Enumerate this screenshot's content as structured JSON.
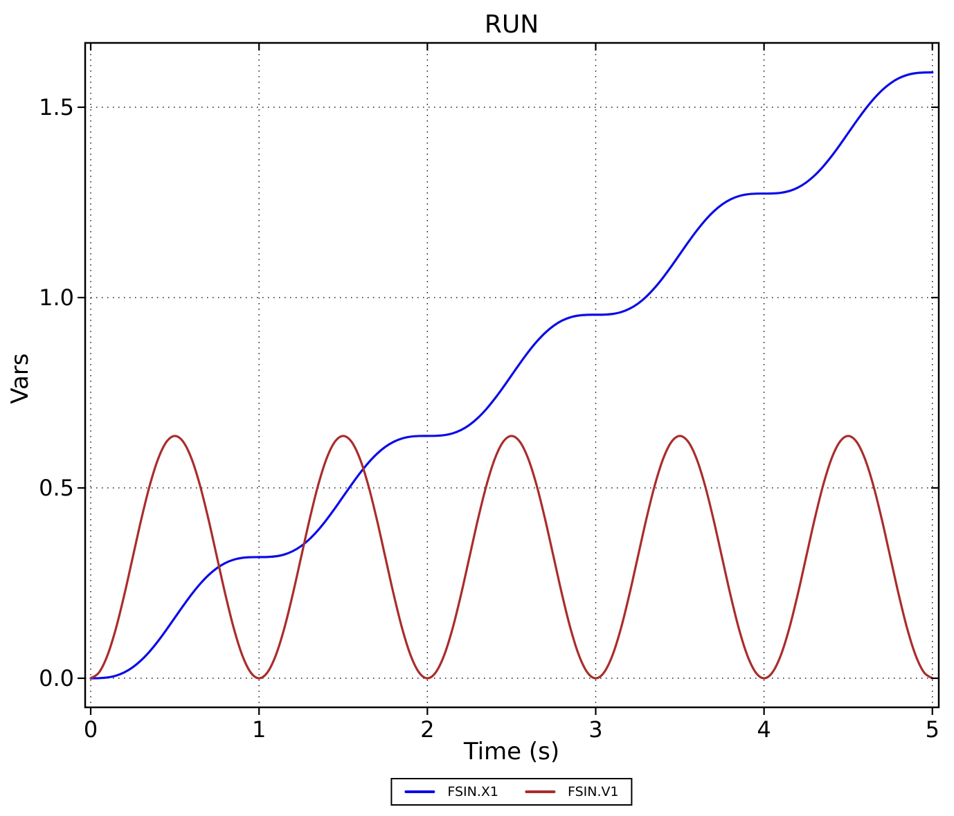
{
  "window": {
    "background": "#ffffff"
  },
  "chart_data": {
    "type": "line",
    "title": "RUN",
    "xlabel": "Time (s)",
    "ylabel": "Vars",
    "xlim": [
      -0.033,
      5.038
    ],
    "ylim": [
      -0.0764,
      1.669
    ],
    "grid": "dotted-black",
    "legend_position": "bottom-center",
    "frame_color": "#000000",
    "xticks": {
      "values": [
        0,
        1,
        2,
        3,
        4,
        5
      ],
      "labels": [
        "0",
        "1",
        "2",
        "3",
        "4",
        "5"
      ]
    },
    "yticks": {
      "values": [
        0.0,
        0.5,
        1.0,
        1.5
      ],
      "labels": [
        "0.0",
        "0.5",
        "1.0",
        "1.5"
      ]
    },
    "x": [
      0.0,
      0.05,
      0.1,
      0.15,
      0.2,
      0.25,
      0.3,
      0.35,
      0.4,
      0.45,
      0.5,
      0.55,
      0.6,
      0.65,
      0.7,
      0.75,
      0.8,
      0.85,
      0.9,
      0.95,
      1.0,
      1.05,
      1.1,
      1.15,
      1.2,
      1.25,
      1.3,
      1.35,
      1.4,
      1.45,
      1.5,
      1.55,
      1.6,
      1.65,
      1.7,
      1.75,
      1.8,
      1.85,
      1.9,
      1.95,
      2.0,
      2.05,
      2.1,
      2.15,
      2.2,
      2.25,
      2.3,
      2.35,
      2.4,
      2.45,
      2.5,
      2.55,
      2.6,
      2.65,
      2.7,
      2.75,
      2.8,
      2.85,
      2.9,
      2.95,
      3.0,
      3.05,
      3.1,
      3.15,
      3.2,
      3.25,
      3.3,
      3.35,
      3.4,
      3.45,
      3.5,
      3.55,
      3.6,
      3.65,
      3.7,
      3.75,
      3.8,
      3.85,
      3.9,
      3.95,
      4.0,
      4.05,
      4.1,
      4.15,
      4.2,
      4.25,
      4.3,
      4.35,
      4.4,
      4.45,
      4.5,
      4.55,
      4.6,
      4.65,
      4.7,
      4.75,
      4.8,
      4.85,
      4.9,
      4.95,
      5.0
    ],
    "series": [
      {
        "name": "FSIN.X1",
        "color": "#0c0ce8",
        "values": [
          0.0,
          0.0003,
          0.0021,
          0.0068,
          0.0155,
          0.0289,
          0.0473,
          0.0704,
          0.0975,
          0.1276,
          0.1592,
          0.1907,
          0.2208,
          0.2479,
          0.271,
          0.2894,
          0.3028,
          0.3115,
          0.3163,
          0.318,
          0.3183,
          0.3186,
          0.3204,
          0.3251,
          0.3338,
          0.3472,
          0.3656,
          0.3887,
          0.4159,
          0.4459,
          0.4775,
          0.509,
          0.5391,
          0.5662,
          0.5893,
          0.6077,
          0.6211,
          0.6299,
          0.6346,
          0.6364,
          0.6366,
          0.6369,
          0.6387,
          0.6434,
          0.6521,
          0.6655,
          0.6839,
          0.707,
          0.7342,
          0.7642,
          0.7958,
          0.8273,
          0.8574,
          0.8845,
          0.9076,
          0.926,
          0.9395,
          0.9482,
          0.9529,
          0.9547,
          0.9549,
          0.9552,
          0.957,
          0.9617,
          0.9704,
          0.9838,
          1.0022,
          1.0254,
          1.0525,
          1.0825,
          1.1141,
          1.1457,
          1.1757,
          1.2028,
          1.2259,
          1.2443,
          1.2578,
          1.2665,
          1.2712,
          1.273,
          1.2732,
          1.2735,
          1.2753,
          1.28,
          1.2887,
          1.3022,
          1.3206,
          1.3437,
          1.3708,
          1.4008,
          1.4324,
          1.464,
          1.494,
          1.5211,
          1.5442,
          1.5626,
          1.5761,
          1.5848,
          1.5895,
          1.5913,
          1.5915
        ]
      },
      {
        "name": "FSIN.V1",
        "color": "#aa2c2c",
        "values": [
          0.0,
          0.0156,
          0.0608,
          0.1312,
          0.2199,
          0.3183,
          0.4167,
          0.5054,
          0.5758,
          0.621,
          0.6366,
          0.621,
          0.5758,
          0.5054,
          0.4167,
          0.3183,
          0.2199,
          0.1312,
          0.0608,
          0.0156,
          0.0,
          0.0156,
          0.0608,
          0.1312,
          0.2199,
          0.3183,
          0.4167,
          0.5054,
          0.5758,
          0.621,
          0.6366,
          0.621,
          0.5758,
          0.5054,
          0.4167,
          0.3183,
          0.2199,
          0.1312,
          0.0608,
          0.0156,
          0.0,
          0.0156,
          0.0608,
          0.1312,
          0.2199,
          0.3183,
          0.4167,
          0.5054,
          0.5758,
          0.621,
          0.6366,
          0.621,
          0.5758,
          0.5054,
          0.4167,
          0.3183,
          0.2199,
          0.1312,
          0.0608,
          0.0156,
          0.0,
          0.0156,
          0.0608,
          0.1312,
          0.2199,
          0.3183,
          0.4167,
          0.5054,
          0.5758,
          0.621,
          0.6366,
          0.621,
          0.5758,
          0.5054,
          0.4167,
          0.3183,
          0.2199,
          0.1312,
          0.0608,
          0.0156,
          0.0,
          0.0156,
          0.0608,
          0.1312,
          0.2199,
          0.3183,
          0.4167,
          0.5054,
          0.5758,
          0.621,
          0.6366,
          0.621,
          0.5758,
          0.5054,
          0.4167,
          0.3183,
          0.2199,
          0.1312,
          0.0608,
          0.0156,
          0.0
        ]
      }
    ]
  }
}
